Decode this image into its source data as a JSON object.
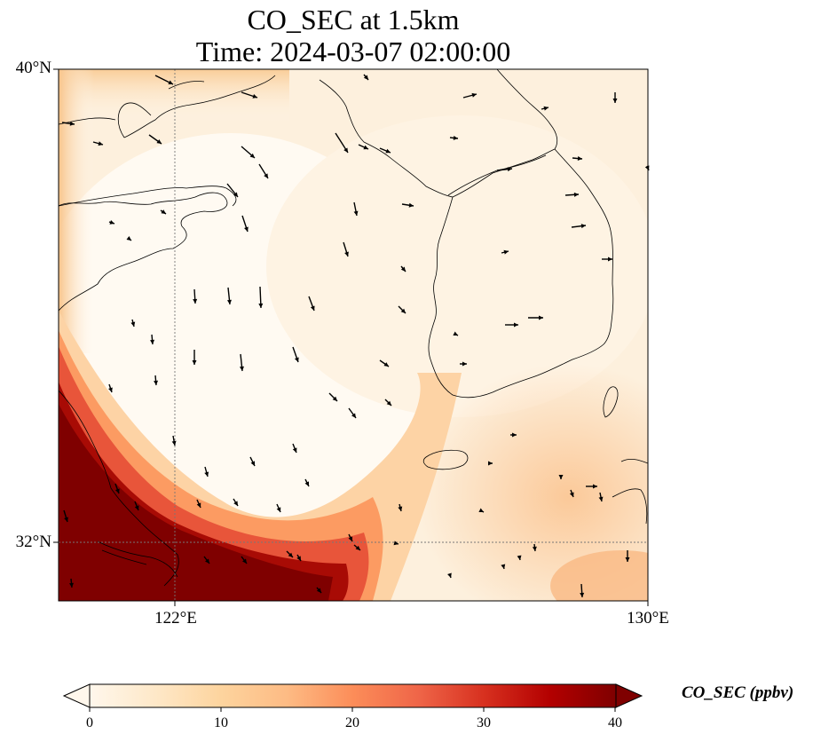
{
  "title": {
    "line1": "CO_SEC at 1.5km",
    "line2": "Time: 2024-03-07 02:00:00"
  },
  "map": {
    "lat_ticks": [
      "40°N",
      "32°N"
    ],
    "lon_ticks": [
      "122°E",
      "130°E"
    ],
    "gridlines": true,
    "extent": {
      "lon_min": 120,
      "lon_max": 130,
      "lat_min": 31,
      "lat_max": 40
    }
  },
  "colorbar": {
    "label": "CO_SEC (ppbv)",
    "ticks": [
      "0",
      "10",
      "20",
      "30",
      "40"
    ],
    "min": 0,
    "max": 40,
    "extend": "both",
    "colormap": "OrRd",
    "colors": [
      "#fff7ec",
      "#fee8c8",
      "#fdd49e",
      "#fdbb84",
      "#fc8d59",
      "#ef6548",
      "#d7301f",
      "#b30000",
      "#7f0000"
    ]
  }
}
